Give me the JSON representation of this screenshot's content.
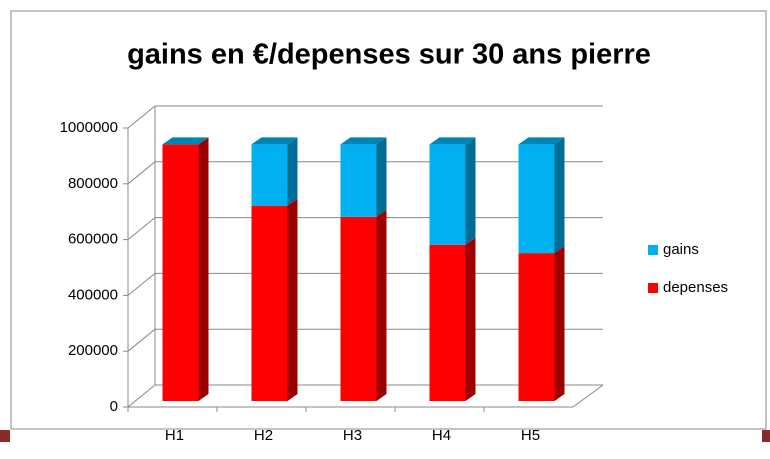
{
  "chart_data": {
    "type": "bar3d_stacked",
    "title": "gains en €/depenses sur 30 ans pierre",
    "categories": [
      "H1",
      "H2",
      "H3",
      "H4",
      "H5"
    ],
    "series": [
      {
        "name": "gains",
        "color": "#00b0f0",
        "values": [
          0,
          220000,
          260000,
          360000,
          390000
        ]
      },
      {
        "name": "depenses",
        "color": "#ff0000",
        "values": [
          920000,
          700000,
          660000,
          560000,
          530000
        ]
      }
    ],
    "ylim": [
      0,
      1000000
    ],
    "yticks": [
      0,
      200000,
      400000,
      600000,
      800000,
      1000000
    ],
    "grid": true,
    "legend": "right"
  }
}
